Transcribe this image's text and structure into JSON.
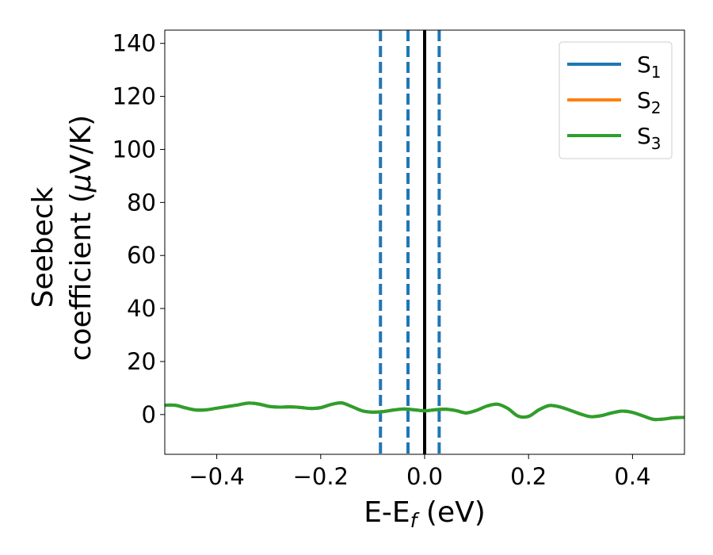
{
  "chart_data": {
    "type": "line",
    "xlabel": {
      "main": "E-E",
      "sub": "f",
      "tail": " (eV)"
    },
    "ylabel": {
      "line1": "Seebeck",
      "line2_pre": "coefficient  (",
      "line2_mu": "μ",
      "line2_post": "V/K)"
    },
    "xlim": [
      -0.5,
      0.5
    ],
    "ylim": [
      -15,
      145
    ],
    "xticks": [
      -0.4,
      -0.2,
      0.0,
      0.2,
      0.4
    ],
    "xtick_labels": [
      "−0.4",
      "−0.2",
      "0.0",
      "0.2",
      "0.4"
    ],
    "yticks": [
      0,
      20,
      40,
      60,
      80,
      100,
      120,
      140
    ],
    "ytick_labels": [
      "0",
      "20",
      "40",
      "60",
      "80",
      "100",
      "120",
      "140"
    ],
    "grid": false,
    "legend_position": "top-right",
    "vlines": [
      {
        "x": -0.085,
        "style": "dashed",
        "color": "#1f77b4"
      },
      {
        "x": -0.032,
        "style": "dashed",
        "color": "#1f77b4"
      },
      {
        "x": 0.0,
        "style": "solid",
        "color": "#000000"
      },
      {
        "x": 0.028,
        "style": "dashed",
        "color": "#1f77b4"
      }
    ],
    "x": [
      -0.5,
      -0.48,
      -0.46,
      -0.44,
      -0.42,
      -0.4,
      -0.38,
      -0.36,
      -0.34,
      -0.32,
      -0.3,
      -0.28,
      -0.26,
      -0.24,
      -0.22,
      -0.2,
      -0.18,
      -0.16,
      -0.14,
      -0.12,
      -0.1,
      -0.08,
      -0.06,
      -0.04,
      -0.02,
      0.0,
      0.02,
      0.04,
      0.06,
      0.08,
      0.1,
      0.12,
      0.14,
      0.16,
      0.18,
      0.2,
      0.22,
      0.24,
      0.26,
      0.28,
      0.3,
      0.32,
      0.34,
      0.36,
      0.38,
      0.4,
      0.42,
      0.44,
      0.46,
      0.48,
      0.5
    ],
    "series": [
      {
        "name": "S",
        "sub": "1",
        "color": "#1f77b4",
        "values": [
          3.5,
          3.5,
          2.5,
          1.7,
          1.8,
          2.4,
          3.0,
          3.6,
          4.3,
          4.0,
          3.1,
          2.8,
          2.9,
          2.7,
          2.3,
          2.6,
          3.8,
          4.4,
          3.0,
          1.4,
          0.9,
          1.1,
          1.7,
          2.1,
          1.8,
          1.4,
          1.8,
          2.0,
          1.5,
          0.6,
          1.6,
          3.2,
          3.9,
          2.3,
          -0.6,
          -0.7,
          1.8,
          3.4,
          2.9,
          1.6,
          0.2,
          -0.8,
          -0.4,
          0.6,
          1.3,
          0.8,
          -0.5,
          -1.8,
          -1.7,
          -1.2,
          -1.1
        ]
      },
      {
        "name": "S",
        "sub": "2",
        "color": "#ff7f0e",
        "values": [
          3.5,
          3.5,
          2.5,
          1.7,
          1.8,
          2.4,
          3.0,
          3.6,
          4.3,
          4.0,
          3.1,
          2.8,
          2.9,
          2.7,
          2.3,
          2.6,
          3.8,
          4.4,
          3.0,
          1.4,
          0.9,
          1.1,
          1.7,
          2.1,
          1.8,
          1.4,
          1.8,
          2.0,
          1.5,
          0.6,
          1.6,
          3.2,
          3.9,
          2.3,
          -0.6,
          -0.7,
          1.8,
          3.4,
          2.9,
          1.6,
          0.2,
          -0.8,
          -0.4,
          0.6,
          1.3,
          0.8,
          -0.5,
          -1.8,
          -1.7,
          -1.2,
          -1.1
        ]
      },
      {
        "name": "S",
        "sub": "3",
        "color": "#2ca02c",
        "values": [
          3.5,
          3.5,
          2.5,
          1.7,
          1.8,
          2.4,
          3.0,
          3.6,
          4.3,
          4.0,
          3.1,
          2.8,
          2.9,
          2.7,
          2.3,
          2.6,
          3.8,
          4.4,
          3.0,
          1.4,
          0.9,
          1.1,
          1.7,
          2.1,
          1.8,
          1.4,
          1.8,
          2.0,
          1.5,
          0.6,
          1.6,
          3.2,
          3.9,
          2.3,
          -0.6,
          -0.7,
          1.8,
          3.4,
          2.9,
          1.6,
          0.2,
          -0.8,
          -0.4,
          0.6,
          1.3,
          0.8,
          -0.5,
          -1.8,
          -1.7,
          -1.2,
          -1.1
        ]
      }
    ]
  }
}
